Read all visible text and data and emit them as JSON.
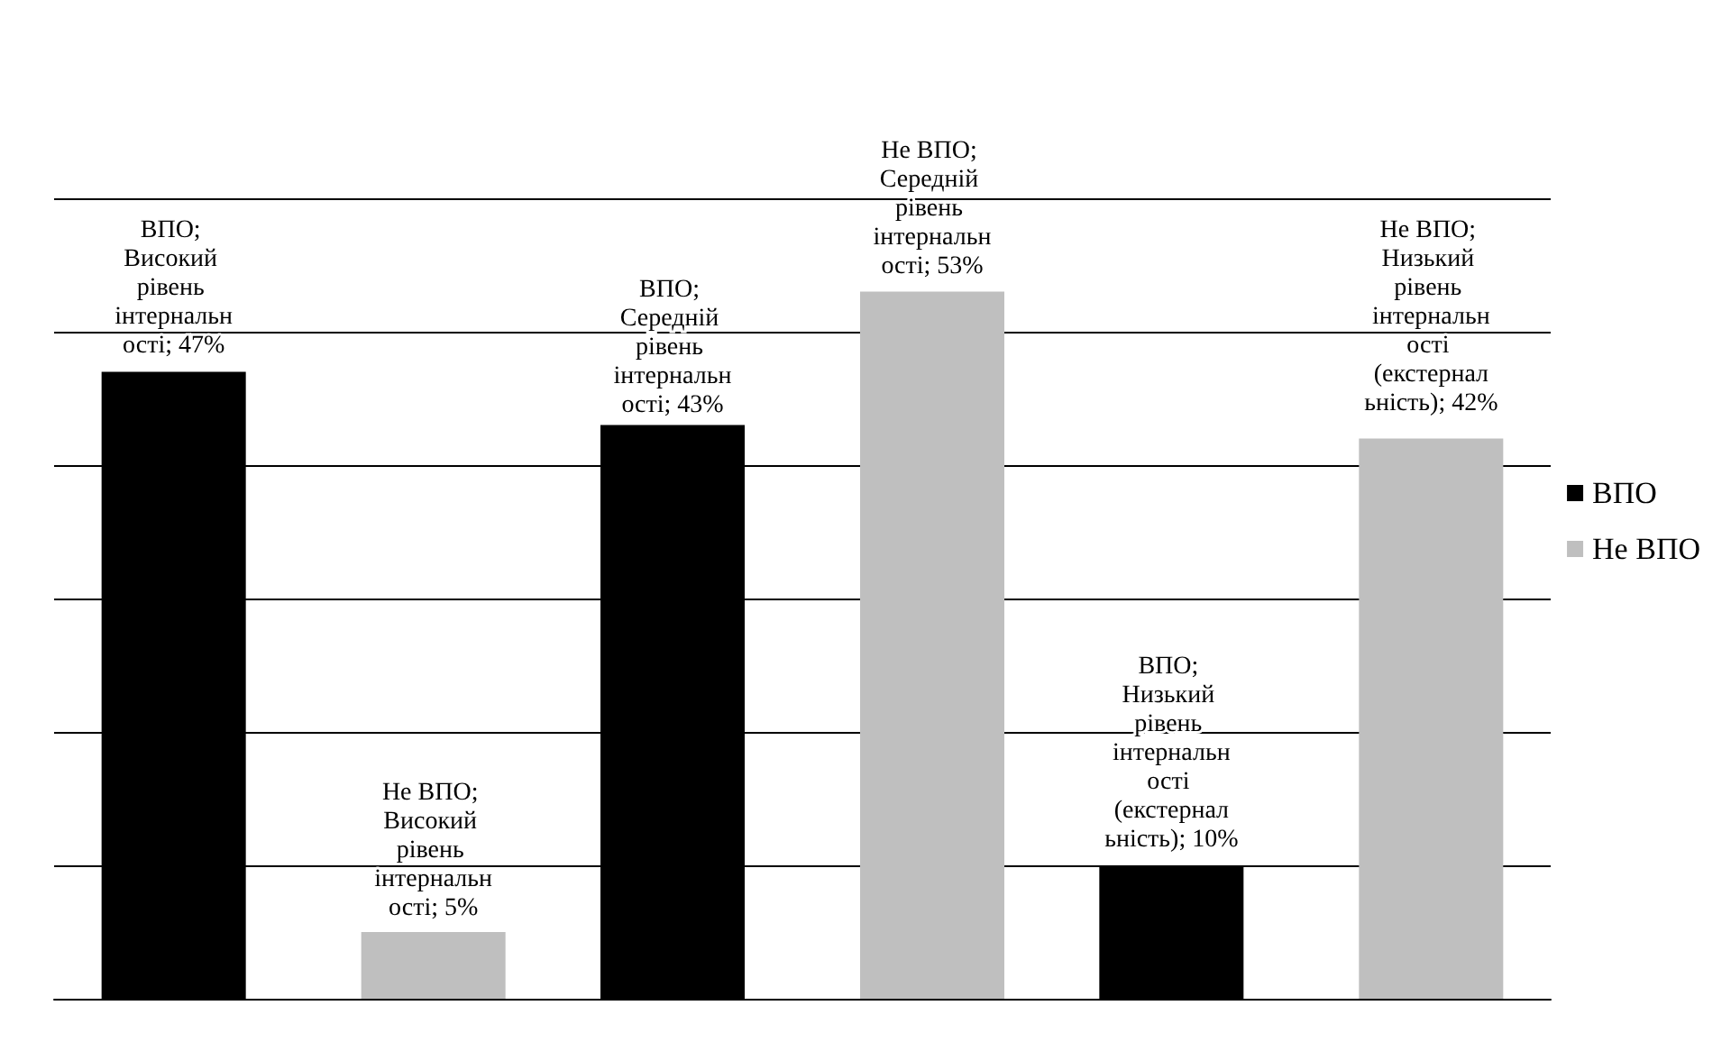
{
  "chart_data": {
    "type": "bar",
    "categories": [
      null,
      null,
      null
    ],
    "series": [
      {
        "name": "ВПО",
        "color": "#000000",
        "values": [
          47,
          43,
          10
        ],
        "value_labels": [
          "ВПО; Високий рівень інтернальності; 47%",
          "ВПО; Середній рівень інтернальності; 43%",
          "ВПО; Низький рівень інтернальності (екстернальність); 10%"
        ]
      },
      {
        "name": "Не ВПО",
        "color": "#bfbfbf",
        "values": [
          5,
          53,
          42
        ],
        "value_labels": [
          "Не ВПО; Високий рівень інтернальності; 5%",
          "Не ВПО; Середній рівень інтернальності; 53%",
          "Не ВПО; Низький рівень інтернальності (екстернальність); 42%"
        ]
      }
    ],
    "ylim": [
      0,
      60
    ],
    "yticks": [
      {
        "value": 0,
        "label": null
      },
      {
        "value": 10,
        "label": null
      },
      {
        "value": 20,
        "label": null
      },
      {
        "value": 30,
        "label": null
      },
      {
        "value": 40,
        "label": null
      },
      {
        "value": 50,
        "label": null
      },
      {
        "value": 60,
        "label": null
      }
    ],
    "grid": "y",
    "legend": "right"
  }
}
